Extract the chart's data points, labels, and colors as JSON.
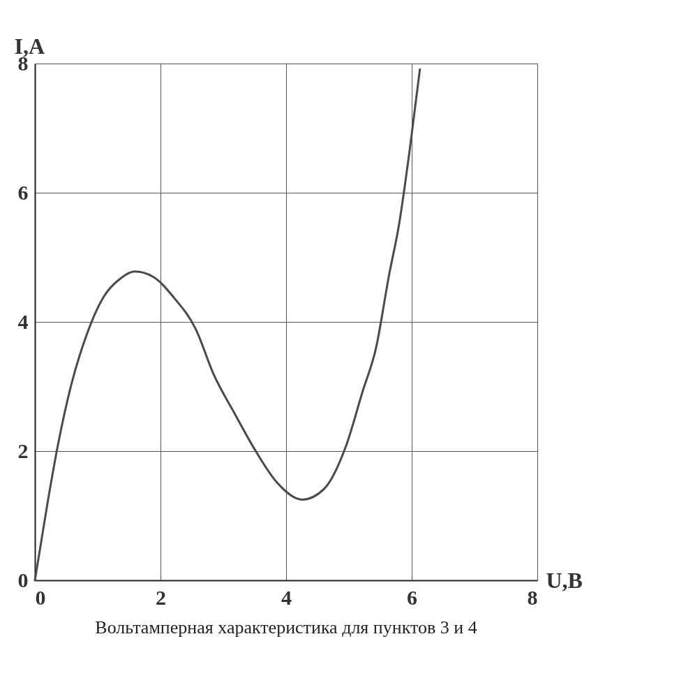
{
  "chart_data": {
    "type": "line",
    "xlabel": "U,B",
    "ylabel": "I,A",
    "annotations": [
      "Вольтамперная характеристика для пунктов 3 и 4"
    ],
    "x": [
      0,
      0.2,
      0.37,
      0.58,
      0.82,
      1.09,
      1.36,
      1.59,
      1.88,
      2.21,
      2.56,
      2.85,
      3.17,
      3.51,
      3.85,
      4.26,
      4.61,
      4.95,
      5.22,
      5.43,
      5.64,
      5.8,
      5.97,
      6.13
    ],
    "series": [
      {
        "color": "#4a4a4a",
        "values": [
          0,
          1.19,
          2.11,
          3.03,
          3.79,
          4.38,
          4.67,
          4.78,
          4.7,
          4.38,
          3.89,
          3.18,
          2.6,
          2.01,
          1.52,
          1.25,
          1.42,
          2.07,
          2.93,
          3.59,
          4.73,
          5.52,
          6.68,
          7.91
        ]
      }
    ],
    "xlim": [
      0,
      8
    ],
    "ylim": [
      0,
      8
    ],
    "xticks": [
      0,
      2,
      4,
      6,
      8
    ],
    "yticks": [
      0,
      2,
      4,
      6,
      8
    ],
    "grid": true,
    "marker": "none",
    "line_style": "solid",
    "legend": false
  }
}
